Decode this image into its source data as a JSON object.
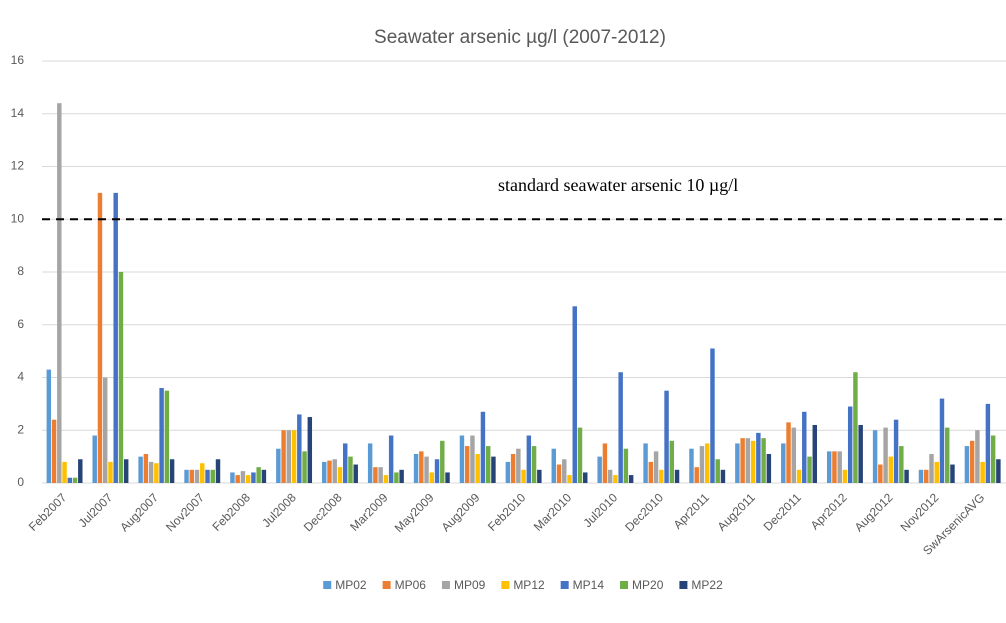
{
  "chart_data": {
    "type": "bar",
    "title": "Seawater arsenic µg/l (2007-2012)",
    "categories": [
      "Feb2007",
      "Jul2007",
      "Aug2007",
      "Nov2007",
      "Feb2008",
      "Jul2008",
      "Dec2008",
      "Mar2009",
      "May2009",
      "Aug2009",
      "Feb2010",
      "Mar2010",
      "Jul2010",
      "Dec2010",
      "Apr2011",
      "Aug2011",
      "Dec2011",
      "Apr2012",
      "Aug2012",
      "Nov2012",
      "SwArsenicAVG"
    ],
    "series": [
      {
        "name": "MP02",
        "color": "#5b9bd5",
        "values": [
          4.3,
          1.8,
          1.0,
          0.5,
          0.4,
          1.3,
          0.8,
          1.5,
          1.1,
          1.8,
          0.8,
          1.3,
          1.0,
          1.5,
          1.3,
          1.5,
          1.5,
          1.2,
          2.0,
          0.5,
          1.4
        ]
      },
      {
        "name": "MP06",
        "color": "#ed7d31",
        "values": [
          2.4,
          11,
          1.1,
          0.5,
          0.3,
          2.0,
          0.85,
          0.6,
          1.2,
          1.4,
          1.1,
          0.7,
          1.5,
          0.8,
          0.6,
          1.7,
          2.3,
          1.2,
          0.7,
          0.5,
          1.6
        ]
      },
      {
        "name": "MP09",
        "color": "#a5a5a5",
        "values": [
          14.4,
          4,
          0.8,
          0.5,
          0.45,
          2.0,
          0.9,
          0.6,
          1.0,
          1.8,
          1.3,
          0.9,
          0.5,
          1.2,
          1.4,
          1.7,
          2.1,
          1.2,
          2.1,
          1.1,
          2.0
        ]
      },
      {
        "name": "MP12",
        "color": "#ffc000",
        "values": [
          0.8,
          0.8,
          0.75,
          0.75,
          0.3,
          2.0,
          0.6,
          0.3,
          0.4,
          1.1,
          0.5,
          0.3,
          0.3,
          0.5,
          1.5,
          1.6,
          0.5,
          0.5,
          1.0,
          0.8,
          0.8
        ]
      },
      {
        "name": "MP14",
        "color": "#4472c4",
        "values": [
          0.2,
          11,
          3.6,
          0.5,
          0.4,
          2.6,
          1.5,
          1.8,
          0.9,
          2.7,
          1.8,
          6.7,
          4.2,
          3.5,
          5.1,
          1.9,
          2.7,
          2.9,
          2.4,
          3.2,
          3.0
        ]
      },
      {
        "name": "MP20",
        "color": "#70ad47",
        "values": [
          0.2,
          8,
          3.5,
          0.5,
          0.6,
          1.2,
          1.0,
          0.4,
          1.6,
          1.4,
          1.4,
          2.1,
          1.3,
          1.6,
          0.9,
          1.7,
          1.0,
          4.2,
          1.4,
          2.1,
          1.8
        ]
      },
      {
        "name": "MP22",
        "color": "#264478",
        "values": [
          0.9,
          0.9,
          0.9,
          0.9,
          0.5,
          2.5,
          0.7,
          0.5,
          0.4,
          1.0,
          0.5,
          0.4,
          0.3,
          0.5,
          0.5,
          1.1,
          2.2,
          2.2,
          0.5,
          0.7,
          0.9
        ]
      }
    ],
    "ylim": [
      0,
      16
    ],
    "yticks": [
      0,
      2,
      4,
      6,
      8,
      10,
      12,
      14,
      16
    ],
    "grid": true,
    "threshold": 10,
    "annotation": "standard seawater arsenic 10 µg/l",
    "legend": "bottom"
  }
}
